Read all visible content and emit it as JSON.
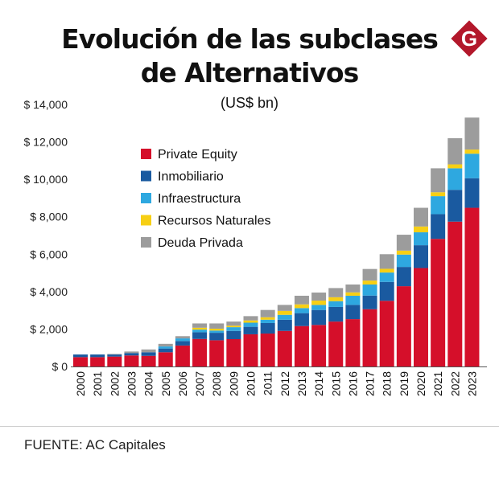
{
  "chart_data": {
    "type": "bar",
    "stacked": true,
    "title": "Evolución de las subclases de Alternativos",
    "subtitle": "(US$ bn)",
    "source": "FUENTE: AC Capitales",
    "categories": [
      "2000",
      "2001",
      "2002",
      "2003",
      "2004",
      "2005",
      "2006",
      "2007",
      "2008",
      "2009",
      "2010",
      "2011",
      "2012",
      "2013",
      "2014",
      "2015",
      "2016",
      "2017",
      "2018",
      "2019",
      "2020",
      "2021",
      "2022",
      "2023"
    ],
    "ylim": [
      0,
      14000
    ],
    "yticks": [
      0,
      2000,
      4000,
      6000,
      8000,
      10000,
      12000,
      14000
    ],
    "ytick_labels": [
      "$ 0",
      "$ 2,000",
      "$ 4,000",
      "$ 6,000",
      "$ 8,000",
      "$ 10,000",
      "$ 12,000",
      "$ 14,000"
    ],
    "grid": false,
    "legend_position": "top-left",
    "series": [
      {
        "name": "Private Equity",
        "color": "#d50f2a",
        "values": [
          500,
          500,
          530,
          590,
          570,
          760,
          1120,
          1470,
          1400,
          1460,
          1720,
          1760,
          1900,
          2160,
          2220,
          2400,
          2530,
          3060,
          3510,
          4290,
          5260,
          6820,
          7740,
          8480
        ]
      },
      {
        "name": "Inmobiliario",
        "color": "#1a5aa0",
        "values": [
          140,
          140,
          110,
          130,
          190,
          200,
          240,
          360,
          400,
          440,
          400,
          560,
          600,
          690,
          800,
          780,
          760,
          730,
          1010,
          1030,
          1220,
          1320,
          1700,
          1580
        ]
      },
      {
        "name": "Infraestructura",
        "color": "#2ea8e0",
        "values": [
          0,
          0,
          0,
          0,
          0,
          110,
          140,
          140,
          120,
          200,
          220,
          180,
          260,
          270,
          270,
          310,
          490,
          590,
          500,
          660,
          690,
          960,
          1150,
          1310
        ]
      },
      {
        "name": "Recursos Naturales",
        "color": "#f7cf14",
        "values": [
          0,
          0,
          0,
          0,
          0,
          0,
          0,
          100,
          100,
          80,
          120,
          130,
          210,
          200,
          230,
          210,
          180,
          210,
          200,
          210,
          310,
          210,
          210,
          220
        ]
      },
      {
        "name": "Deuda Privada",
        "color": "#9c9c9c",
        "values": [
          0,
          0,
          30,
          80,
          150,
          140,
          120,
          230,
          280,
          220,
          230,
          390,
          320,
          460,
          430,
          490,
          420,
          620,
          780,
          850,
          1000,
          1280,
          1400,
          1710
        ]
      }
    ]
  }
}
